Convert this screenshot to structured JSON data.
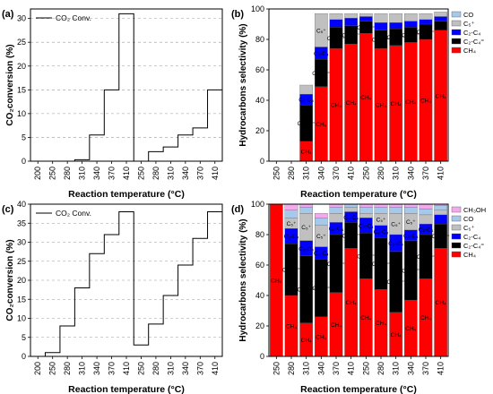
{
  "figure": {
    "panels": [
      {
        "letter": "(a)",
        "ylabel": "CO₂conversion (%)",
        "xlabel": "Reaction temperature (°C)",
        "legend": "CO₂ Conv.",
        "xticks": [
          "200",
          "250",
          "280",
          "310",
          "340",
          "370",
          "410",
          "250",
          "280",
          "310",
          "340",
          "370",
          "410"
        ],
        "yticks": [
          "0",
          "5",
          "10",
          "15",
          "20",
          "25",
          "30"
        ],
        "ylim": [
          0,
          32
        ]
      },
      {
        "letter": "(b)",
        "ylabel": "Hydrocarbons selectivity (%)",
        "xlabel": "Reaction temperature (°C)",
        "xticks": [
          "250",
          "280",
          "310",
          "340",
          "370",
          "410",
          "250",
          "280",
          "310",
          "340",
          "370",
          "410"
        ],
        "yticks": [
          "0",
          "20",
          "40",
          "60",
          "80",
          "100"
        ],
        "ylim": [
          0,
          100
        ],
        "legend": [
          "CO",
          "C₅⁺",
          "C₂-C₄",
          "C₂-C₄⁼",
          "CH₄"
        ]
      },
      {
        "letter": "(c)",
        "ylabel": "CO₂conversion (%)",
        "xlabel": "Reaction temperature (°C)",
        "legend": "CO₂ Conv.",
        "xticks": [
          "200",
          "250",
          "280",
          "310",
          "340",
          "370",
          "410",
          "250",
          "280",
          "310",
          "340",
          "370",
          "410"
        ],
        "yticks": [
          "0",
          "5",
          "10",
          "15",
          "20",
          "25",
          "30",
          "35",
          "40"
        ],
        "ylim": [
          0,
          40
        ]
      },
      {
        "letter": "(d)",
        "ylabel": "Hydrocarbons selectivity (%)",
        "xlabel": "Reaction temperature (°C)",
        "xticks": [
          "250",
          "280",
          "310",
          "340",
          "370",
          "410",
          "250",
          "280",
          "310",
          "340",
          "370",
          "410"
        ],
        "yticks": [
          "0",
          "20",
          "40",
          "60",
          "80",
          "100"
        ],
        "ylim": [
          0,
          100
        ],
        "legend": [
          "CH₃OH",
          "CO",
          "C₅⁺",
          "C₂-C₄",
          "C₂-C₄⁼",
          "CH₄"
        ]
      }
    ],
    "colors": {
      "CH4": "#ff0000",
      "C2C4_olefin": "#000000",
      "C2C4": "#0000ff",
      "C5plus": "#c0c0c0",
      "CO": "#a6c8ea",
      "CH3OH": "#f4a8f0"
    }
  },
  "chart_data": [
    {
      "panel": "a",
      "type": "line",
      "title": "",
      "xlabel": "Reaction temperature (°C)",
      "ylabel": "CO₂conversion (%)",
      "series": [
        {
          "name": "CO₂ Conv.",
          "step": true,
          "x": [
            "200",
            "250",
            "280",
            "310",
            "340",
            "370",
            "410",
            "250",
            "280",
            "310",
            "340",
            "370",
            "410"
          ],
          "y": [
            0,
            0,
            0,
            0.3,
            5.5,
            15,
            31,
            0,
            2,
            3,
            5.5,
            7,
            15
          ]
        }
      ],
      "final_value": 31,
      "ylim": [
        0,
        32
      ],
      "grid": "dashed horizontal"
    },
    {
      "panel": "b",
      "type": "bar",
      "stacked": true,
      "title": "",
      "xlabel": "Reaction temperature (°C)",
      "ylabel": "Hydrocarbons selectivity (%)",
      "categories": [
        "250",
        "280",
        "310",
        "340",
        "370",
        "410",
        "250",
        "280",
        "310",
        "340",
        "370",
        "410"
      ],
      "series": [
        {
          "name": "CH₄",
          "label": "CH₄",
          "values": [
            0,
            0,
            13,
            49,
            74,
            77,
            84,
            74,
            76,
            78,
            80,
            86
          ]
        },
        {
          "name": "C₂-C₄⁼",
          "label": "C₂-C₄⁼",
          "values": [
            0,
            0,
            24,
            18,
            14,
            12,
            8,
            12,
            11,
            10,
            10,
            6
          ]
        },
        {
          "name": "C₂-C₄",
          "label": "C₂-C₄",
          "values": [
            0,
            0,
            7,
            8,
            5,
            5,
            3,
            5,
            4,
            4,
            3,
            3
          ]
        },
        {
          "name": "C₅⁺",
          "label": "C₅⁺",
          "values": [
            0,
            0,
            6,
            22,
            4,
            3,
            2,
            6,
            6,
            5,
            4,
            3
          ]
        },
        {
          "name": "CO",
          "values": [
            0,
            0,
            0,
            0,
            0,
            0,
            0,
            0,
            0,
            0,
            0,
            0
          ]
        }
      ],
      "ylim": [
        0,
        100
      ],
      "legend": "top-right"
    },
    {
      "panel": "c",
      "type": "line",
      "title": "",
      "xlabel": "Reaction temperature (°C)",
      "ylabel": "CO₂conversion (%)",
      "series": [
        {
          "name": "CO₂ Conv.",
          "step": true,
          "x": [
            "200",
            "250",
            "280",
            "310",
            "340",
            "370",
            "410",
            "250",
            "280",
            "310",
            "340",
            "370",
            "410"
          ],
          "y": [
            0,
            1,
            8,
            18,
            27,
            32,
            38,
            3,
            8.5,
            16,
            24,
            31,
            38
          ]
        }
      ],
      "ylim": [
        0,
        40
      ],
      "grid": "dashed horizontal"
    },
    {
      "panel": "d",
      "type": "bar",
      "stacked": true,
      "title": "",
      "xlabel": "Reaction temperature (°C)",
      "ylabel": "Hydrocarbons selectivity (%)",
      "categories": [
        "250",
        "280",
        "310",
        "340",
        "370",
        "410",
        "250",
        "280",
        "310",
        "340",
        "370",
        "410"
      ],
      "series": [
        {
          "name": "CH₄",
          "label": "CH₄",
          "values": [
            100,
            40,
            22,
            26,
            42,
            71,
            51,
            44,
            29,
            37,
            51,
            71
          ]
        },
        {
          "name": "C₂-C₄⁼",
          "label": "C₂-C₄⁼",
          "values": [
            0,
            34,
            44,
            38,
            38,
            17,
            30,
            34,
            40,
            39,
            29,
            16
          ]
        },
        {
          "name": "C₂-C₄",
          "label": "C₂-C₄",
          "values": [
            0,
            10,
            10,
            8,
            8,
            7,
            10,
            8,
            11,
            7,
            7,
            6
          ]
        },
        {
          "name": "C₅⁺",
          "label": "C₅⁺",
          "values": [
            0,
            7,
            18,
            14,
            6,
            3,
            3,
            8,
            14,
            11,
            6,
            3
          ]
        },
        {
          "name": "CO",
          "values": [
            0,
            5,
            4,
            5,
            4,
            2,
            4,
            4,
            4,
            4,
            4,
            3
          ]
        },
        {
          "name": "CH₃OH",
          "values": [
            0,
            4,
            2,
            3,
            2,
            0,
            2,
            2,
            2,
            2,
            3,
            1
          ]
        }
      ],
      "ylim": [
        0,
        100
      ],
      "legend": "top-right"
    }
  ]
}
